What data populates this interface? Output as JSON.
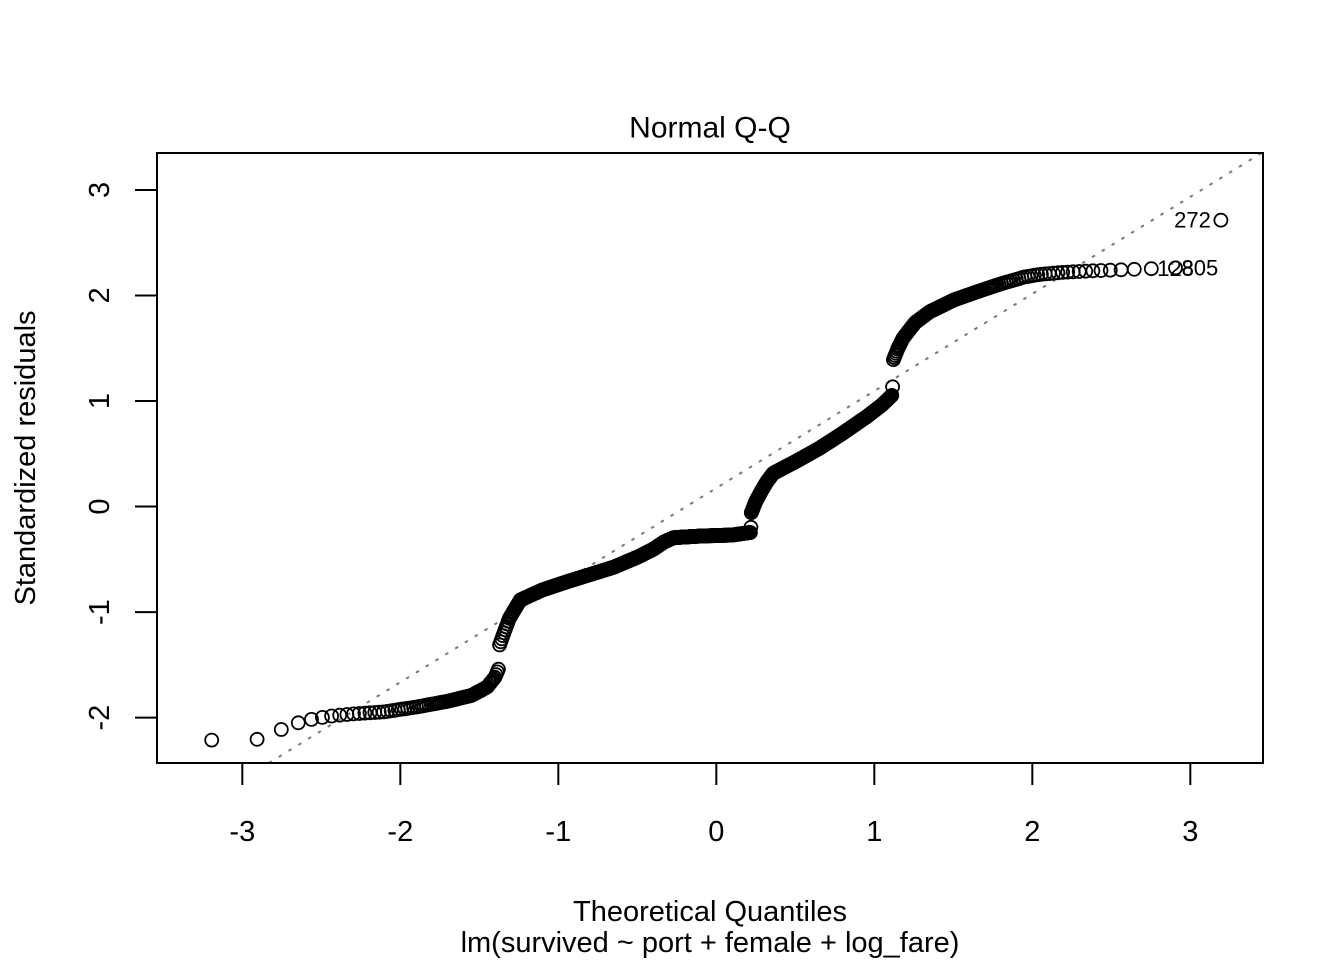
{
  "figure": {
    "title": "Normal Q-Q",
    "x_axis": {
      "label": "Theoretical Quantiles"
    },
    "y_axis": {
      "label": "Standardized residuals"
    },
    "caption": "lm(survived ~ port + female + log_fare)"
  },
  "chart_data": {
    "type": "scatter",
    "subtype": "qq-normal-residual-diagnostic",
    "title": "Normal Q-Q",
    "xlabel": "Theoretical Quantiles",
    "ylabel": "Standardized residuals",
    "model_caption": "lm(survived ~ port + female + log_fare)",
    "n_points": 889,
    "plotting_positions": "(i - 0.375) / (n + 0.25)",
    "xlim": [
      -3.54,
      3.46
    ],
    "ylim": [
      -2.43,
      3.35
    ],
    "x_ticks": [
      -3,
      -2,
      -1,
      0,
      1,
      2,
      3
    ],
    "y_ticks": [
      -2,
      -1,
      0,
      1,
      2,
      3
    ],
    "grid": false,
    "marker": {
      "shape": "open-circle",
      "color": "#000000"
    },
    "reference_line": {
      "style": "dotted",
      "color": "#7a7a7a",
      "slope": 0.92,
      "intercept": 0.175
    },
    "residual_profile": [
      [
        -3.3,
        -2.215
      ],
      [
        -3.1,
        -2.212
      ],
      [
        -2.89,
        -2.205
      ],
      [
        -2.72,
        -2.09
      ],
      [
        -2.61,
        -2.03
      ],
      [
        -2.52,
        -2.005
      ],
      [
        -2.44,
        -1.985
      ],
      [
        -2.3,
        -1.965
      ],
      [
        -2.1,
        -1.945
      ],
      [
        -1.9,
        -1.9
      ],
      [
        -1.7,
        -1.845
      ],
      [
        -1.55,
        -1.79
      ],
      [
        -1.45,
        -1.71
      ],
      [
        -1.4,
        -1.615
      ],
      [
        -1.376,
        -1.53
      ],
      [
        -1.373,
        -1.315
      ],
      [
        -1.31,
        -1.06
      ],
      [
        -1.26,
        -0.935
      ],
      [
        -1.24,
        -0.885
      ],
      [
        -1.1,
        -0.79
      ],
      [
        -0.95,
        -0.715
      ],
      [
        -0.8,
        -0.645
      ],
      [
        -0.65,
        -0.575
      ],
      [
        -0.5,
        -0.48
      ],
      [
        -0.4,
        -0.405
      ],
      [
        -0.33,
        -0.335
      ],
      [
        -0.27,
        -0.295
      ],
      [
        -0.1,
        -0.28
      ],
      [
        0.1,
        -0.27
      ],
      [
        0.218,
        -0.245
      ],
      [
        0.221,
        -0.06
      ],
      [
        0.25,
        0.05
      ],
      [
        0.29,
        0.16
      ],
      [
        0.32,
        0.235
      ],
      [
        0.36,
        0.315
      ],
      [
        0.5,
        0.425
      ],
      [
        0.65,
        0.55
      ],
      [
        0.8,
        0.695
      ],
      [
        0.95,
        0.85
      ],
      [
        1.05,
        0.965
      ],
      [
        1.115,
        1.06
      ],
      [
        1.118,
        1.38
      ],
      [
        1.15,
        1.5
      ],
      [
        1.18,
        1.59
      ],
      [
        1.22,
        1.67
      ],
      [
        1.26,
        1.745
      ],
      [
        1.35,
        1.845
      ],
      [
        1.5,
        1.955
      ],
      [
        1.65,
        2.035
      ],
      [
        1.8,
        2.11
      ],
      [
        1.95,
        2.175
      ],
      [
        2.05,
        2.2
      ],
      [
        2.2,
        2.22
      ],
      [
        2.4,
        2.235
      ],
      [
        2.6,
        2.245
      ],
      [
        2.86,
        2.26
      ],
      [
        3.1,
        2.265
      ],
      [
        3.16,
        2.27
      ],
      [
        3.175,
        2.71
      ],
      [
        3.3,
        2.73
      ]
    ],
    "labeled_points": [
      {
        "label": "128",
        "index": 887,
        "side": "right"
      },
      {
        "label": "805",
        "index": 888,
        "side": "right"
      },
      {
        "label": "272",
        "index": 889,
        "side": "left"
      }
    ]
  }
}
